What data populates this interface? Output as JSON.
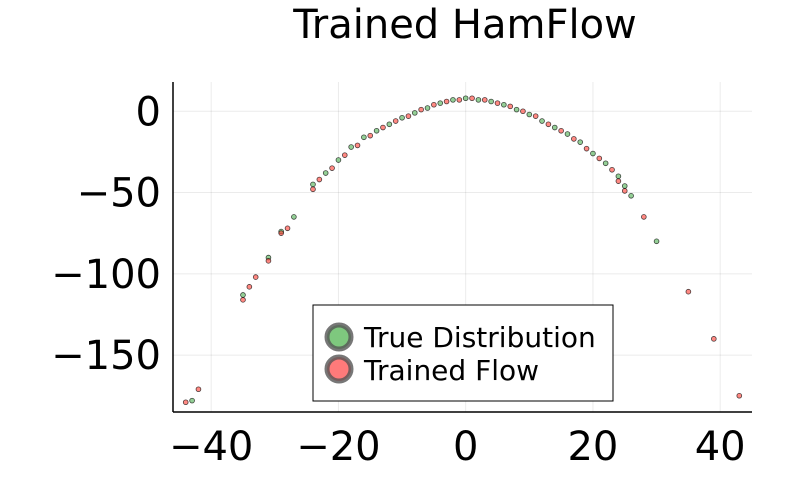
{
  "chart_data": {
    "type": "scatter",
    "title": "Trained HamFlow",
    "xlabel": "",
    "ylabel": "",
    "xlim": [
      -46,
      45
    ],
    "ylim": [
      -185,
      18
    ],
    "xticks": [
      -40,
      -20,
      0,
      20,
      40
    ],
    "yticks": [
      0,
      -50,
      -100,
      -150
    ],
    "xtick_labels": [
      "−40",
      "−20",
      "0",
      "20",
      "40"
    ],
    "ytick_labels": [
      "0",
      "−50",
      "−100",
      "−150"
    ],
    "grid": true,
    "legend_position": "bottom-center",
    "series": [
      {
        "name": "True Distribution",
        "color": "#4caf50",
        "points": [
          [
            -43,
            -178
          ],
          [
            -35,
            -113
          ],
          [
            -31,
            -90
          ],
          [
            -29,
            -74
          ],
          [
            -27,
            -65
          ],
          [
            -24,
            -45
          ],
          [
            -22,
            -38
          ],
          [
            -20,
            -30
          ],
          [
            -18,
            -22
          ],
          [
            -16,
            -16
          ],
          [
            -14,
            -12
          ],
          [
            -12,
            -8
          ],
          [
            -10,
            -4
          ],
          [
            -8,
            -1
          ],
          [
            -6,
            2
          ],
          [
            -4,
            5
          ],
          [
            -2,
            7
          ],
          [
            0,
            8
          ],
          [
            2,
            7
          ],
          [
            4,
            6
          ],
          [
            6,
            4
          ],
          [
            8,
            1
          ],
          [
            10,
            -2
          ],
          [
            12,
            -6
          ],
          [
            14,
            -10
          ],
          [
            16,
            -14
          ],
          [
            18,
            -19
          ],
          [
            20,
            -26
          ],
          [
            22,
            -32
          ],
          [
            24,
            -40
          ],
          [
            25,
            -46
          ],
          [
            26,
            -52
          ],
          [
            30,
            -80
          ]
        ]
      },
      {
        "name": "Trained Flow",
        "color": "#ff3b30",
        "points": [
          [
            -44,
            -179
          ],
          [
            -42,
            -171
          ],
          [
            -35,
            -116
          ],
          [
            -34,
            -108
          ],
          [
            -33,
            -102
          ],
          [
            -31,
            -92
          ],
          [
            -29,
            -75
          ],
          [
            -28,
            -72
          ],
          [
            -24,
            -48
          ],
          [
            -23,
            -42
          ],
          [
            -21,
            -35
          ],
          [
            -19,
            -27
          ],
          [
            -17,
            -21
          ],
          [
            -15,
            -15
          ],
          [
            -13,
            -10
          ],
          [
            -11,
            -6
          ],
          [
            -9,
            -3
          ],
          [
            -7,
            1
          ],
          [
            -5,
            4
          ],
          [
            -3,
            6
          ],
          [
            -1,
            7
          ],
          [
            1,
            8
          ],
          [
            3,
            7
          ],
          [
            5,
            5
          ],
          [
            7,
            3
          ],
          [
            9,
            0
          ],
          [
            11,
            -3
          ],
          [
            13,
            -8
          ],
          [
            15,
            -12
          ],
          [
            17,
            -17
          ],
          [
            19,
            -23
          ],
          [
            21,
            -29
          ],
          [
            23,
            -36
          ],
          [
            24,
            -43
          ],
          [
            25,
            -49
          ],
          [
            28,
            -65
          ],
          [
            35,
            -111
          ],
          [
            39,
            -140
          ],
          [
            43,
            -175
          ]
        ]
      }
    ]
  }
}
